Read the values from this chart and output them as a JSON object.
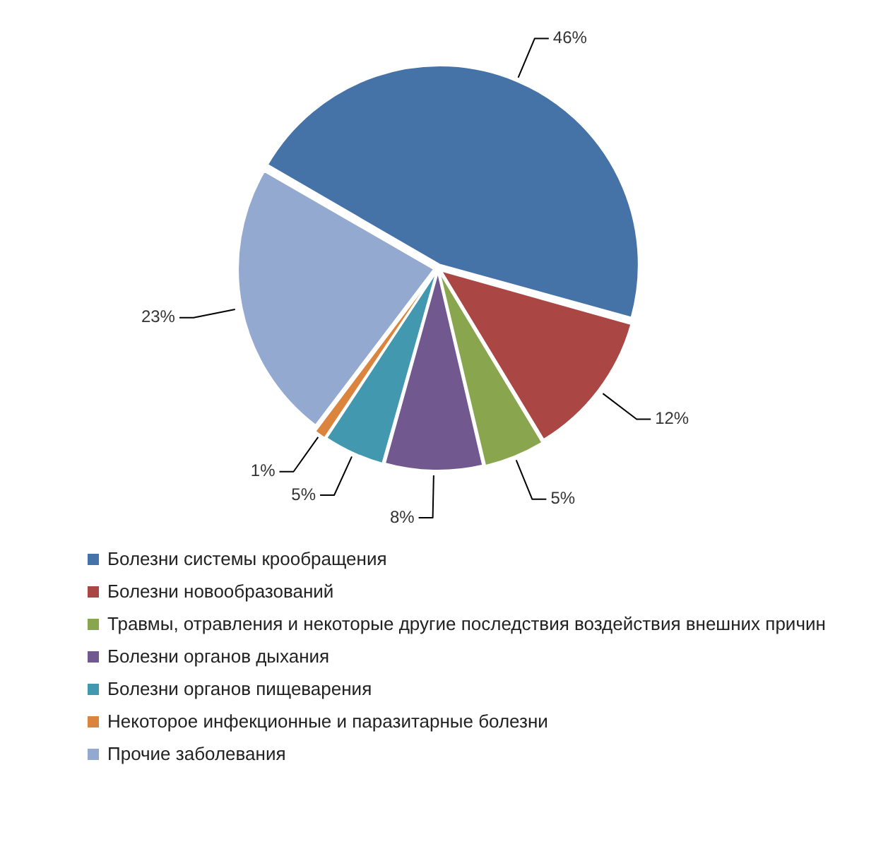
{
  "chart_data": {
    "type": "pie",
    "categories": [
      "Болезни системы крообращения",
      "Болезни новообразований",
      "Травмы, отравления и некоторые другие последствия воздействия внешних причин",
      "Болезни органов дыхания",
      "Болезни органов пищеварения",
      "Некоторое инфекционные и паразитарные болезни",
      "Прочие заболевания"
    ],
    "values": [
      46,
      12,
      5,
      8,
      5,
      1,
      23
    ],
    "colors": [
      "#4572a7",
      "#aa4643",
      "#89a54e",
      "#71588f",
      "#4198af",
      "#db843d",
      "#93a9cf"
    ],
    "value_labels": [
      "46%",
      "12%",
      "5%",
      "8%",
      "5%",
      "1%",
      "23%"
    ],
    "legend": "bottom"
  }
}
